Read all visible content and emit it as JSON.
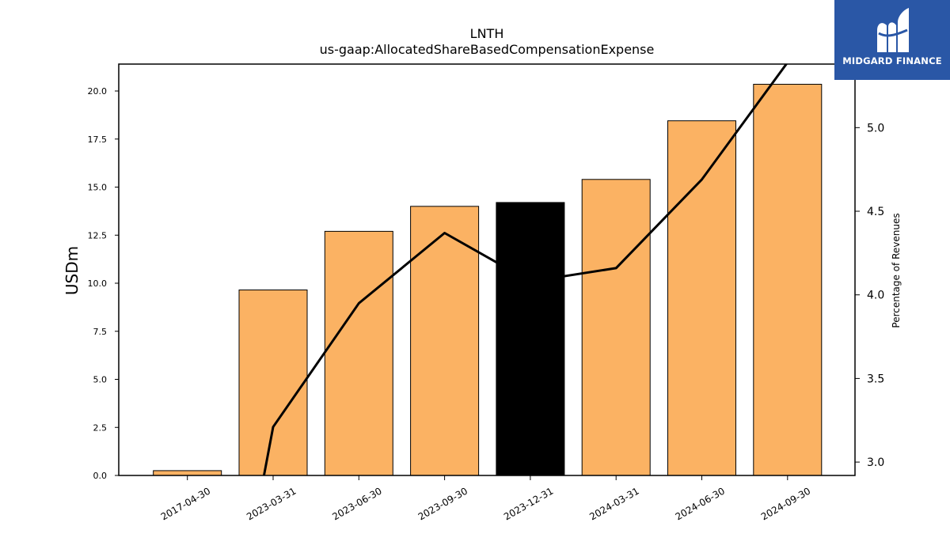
{
  "chart_data": {
    "type": "bar",
    "title": "LNTH",
    "subtitle": "us-gaap:AllocatedShareBasedCompensationExpense",
    "ylabel": "USDm",
    "y2label": "Percentage of Revenues",
    "categories": [
      "2017-04-30",
      "2023-03-31",
      "2023-06-30",
      "2023-09-30",
      "2023-12-31",
      "2024-03-31",
      "2024-06-30",
      "2024-09-30"
    ],
    "series": [
      {
        "type": "bar",
        "axis": "left",
        "values": [
          0.25,
          9.65,
          12.7,
          14.0,
          14.2,
          15.4,
          18.45,
          20.35
        ]
      },
      {
        "type": "line",
        "axis": "right",
        "values": [
          null,
          3.21,
          3.95,
          4.37,
          4.08,
          4.16,
          4.69,
          5.39
        ]
      }
    ],
    "highlight_index": 4,
    "ylim": [
      0,
      21.4
    ],
    "y2lim": [
      2.92,
      5.38
    ],
    "yticks": [
      "0.0",
      "2.5",
      "5.0",
      "7.5",
      "10.0",
      "12.5",
      "15.0",
      "17.5",
      "20.0"
    ],
    "y2ticks": [
      "3.0",
      "3.5",
      "4.0",
      "4.5",
      "5.0"
    ],
    "grid": false,
    "colors": {
      "bar": "#fbb263",
      "highlight": "#000000",
      "line": "#000000",
      "edge": "#000000"
    }
  },
  "logo": {
    "text": "MIDGARD FINANCE",
    "background": "#2a57a6"
  }
}
